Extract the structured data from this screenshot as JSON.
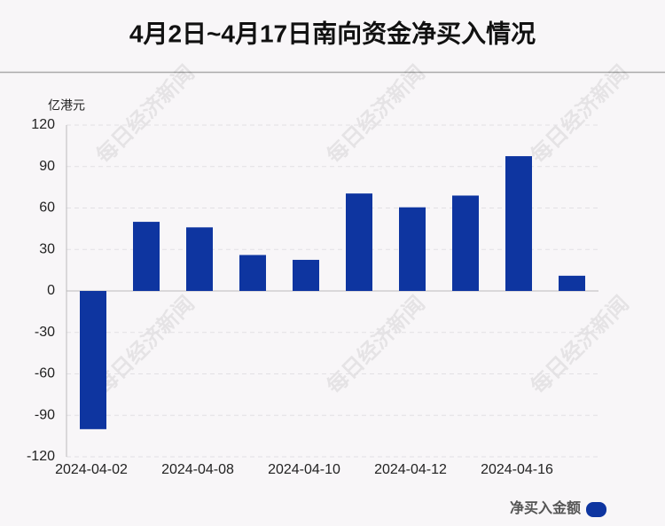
{
  "chart_data": {
    "type": "bar",
    "title": "4月2日~4月17日南向资金净买入情况",
    "y_label": "亿港元",
    "watermark": "每日经济新闻",
    "categories": [
      "2024-04-02",
      null,
      "2024-04-08",
      null,
      "2024-04-10",
      null,
      "2024-04-12",
      null,
      "2024-04-16",
      null
    ],
    "series": [
      {
        "name": "净买入金额",
        "color": "#0e35a0",
        "values": [
          -100,
          50,
          46,
          26,
          22.5,
          70.5,
          60.5,
          69,
          97.5,
          11
        ]
      }
    ],
    "ylim": [
      -120,
      120
    ],
    "yticks": [
      -120,
      -90,
      -60,
      -30,
      0,
      30,
      60,
      90,
      120
    ],
    "grid": true,
    "legend": "bottom-right"
  }
}
